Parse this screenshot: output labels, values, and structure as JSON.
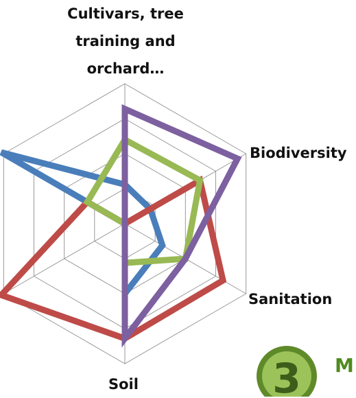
{
  "chart_data": {
    "type": "radar",
    "categories": [
      "Cultivars, tree training and orchard…",
      "Biodiversity",
      "Sanitation",
      "Soil",
      null,
      null
    ],
    "series": [
      {
        "color": "#4a7ebb",
        "values": [
          1.4,
          1.05,
          1.55,
          2.5,
          0,
          5.1
        ]
      },
      {
        "color": "#be4b48",
        "values": [
          0,
          3.1,
          4.05,
          4.1,
          5.1,
          1.55
        ]
      },
      {
        "color": "#98b954",
        "values": [
          3.0,
          3.1,
          2.5,
          1.4,
          0,
          1.55
        ]
      },
      {
        "color": "#7d60a0",
        "values": [
          4.1,
          4.65,
          2.5,
          4.1,
          0,
          0
        ]
      }
    ],
    "ylim": [
      0,
      5
    ]
  },
  "logo": {
    "number": "3",
    "text": "M"
  }
}
